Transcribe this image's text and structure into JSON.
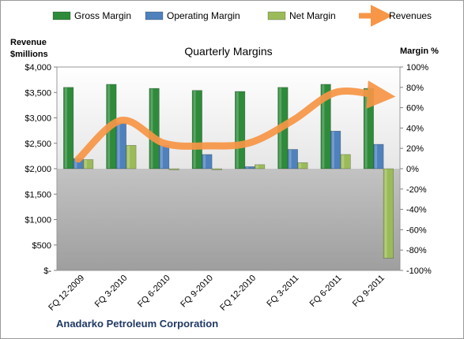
{
  "chart_data": {
    "type": "bar",
    "title": "Quarterly Margins",
    "company": "Anadarko Petroleum Corporation",
    "categories": [
      "FQ 12-2009",
      "FQ 3-2010",
      "FQ 6-2010",
      "FQ 9-2010",
      "FQ 12-2010",
      "FQ 3-2011",
      "FQ 6-2011",
      "FQ 9-2011"
    ],
    "y_left": {
      "label_line1": "Revenue",
      "label_line2": "$millions",
      "min": 0,
      "max": 4000,
      "step": 500,
      "tick_labels": [
        "$-",
        "$500",
        "$1,000",
        "$1,500",
        "$2,000",
        "$2,500",
        "$3,000",
        "$3,500",
        "$4,000"
      ]
    },
    "y_right": {
      "label": "Margin %",
      "min": -100,
      "max": 100,
      "step": 20,
      "tick_labels": [
        "-100%",
        "-80%",
        "-60%",
        "-40%",
        "-20%",
        "0%",
        "20%",
        "40%",
        "60%",
        "80%",
        "100%"
      ]
    },
    "series": [
      {
        "name": "Gross Margin",
        "axis": "right",
        "type": "bar",
        "color": "#2e8b3a",
        "values": [
          80,
          83,
          79,
          77,
          76,
          80,
          83,
          79
        ]
      },
      {
        "name": "Operating Margin",
        "axis": "right",
        "type": "bar",
        "color": "#4f81bd",
        "values": [
          10,
          45,
          23,
          14,
          2,
          19,
          37,
          24
        ]
      },
      {
        "name": "Net Margin",
        "axis": "right",
        "type": "bar",
        "color": "#9bbb59",
        "values": [
          9,
          23,
          -1,
          -1,
          4,
          6,
          14,
          -88
        ]
      },
      {
        "name": "Revenues",
        "axis": "left",
        "type": "line",
        "color": "#f79646",
        "values": [
          2190,
          2950,
          2500,
          2450,
          2510,
          2950,
          3500,
          3440
        ]
      }
    ],
    "legend_position": "top",
    "grid": false
  }
}
